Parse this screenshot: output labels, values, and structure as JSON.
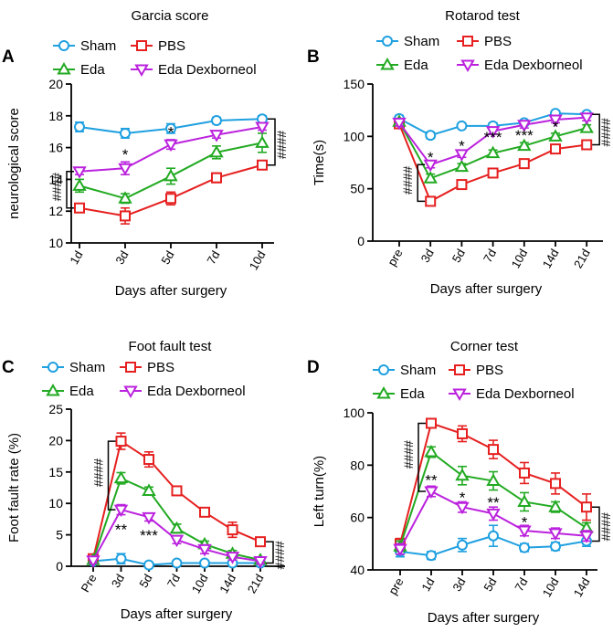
{
  "colors": {
    "sham": "#1fa0e0",
    "pbs": "#e62020",
    "eda": "#22aa22",
    "dex": "#bb22dd"
  },
  "chart_data": [
    {
      "type": "line",
      "letter": "A",
      "title": "Garcia score",
      "xlabel": "Days after surgery",
      "ylabel": "neurological score",
      "categories": [
        "1d",
        "3d",
        "5d",
        "7d",
        "10d"
      ],
      "ylim": [
        10,
        20
      ],
      "yticks": [
        10,
        12,
        14,
        16,
        18,
        20
      ],
      "series": [
        {
          "key": "sham",
          "name": "Sham",
          "marker": "circle",
          "values": [
            17.3,
            16.9,
            17.2,
            17.7,
            17.8
          ],
          "err": [
            0.3,
            0.3,
            0.3,
            0.2,
            0.2
          ]
        },
        {
          "key": "pbs",
          "name": "PBS",
          "marker": "square",
          "values": [
            12.2,
            11.7,
            12.8,
            14.1,
            14.9
          ],
          "err": [
            0.2,
            0.5,
            0.4,
            0.3,
            0.2
          ]
        },
        {
          "key": "eda",
          "name": "Eda",
          "marker": "triangle",
          "values": [
            13.6,
            12.8,
            14.2,
            15.7,
            16.3
          ],
          "err": [
            0.4,
            0.3,
            0.5,
            0.4,
            0.6
          ]
        },
        {
          "key": "dex",
          "name": "Eda Dexborneol",
          "marker": "triangle-down",
          "values": [
            14.5,
            14.7,
            16.2,
            16.8,
            17.3
          ],
          "err": [
            0.2,
            0.4,
            0.3,
            0.2,
            0.2
          ]
        }
      ],
      "star_marks": [
        {
          "cat": 1,
          "y": 15.7,
          "text": "*"
        },
        {
          "cat": 2,
          "y": 17.1,
          "text": "*"
        }
      ],
      "brackets": [
        {
          "side": "left",
          "cat": 0,
          "y1": 12.2,
          "y2": 14.5,
          "text": "####"
        },
        {
          "side": "right",
          "cat": 4,
          "y1": 14.9,
          "y2": 17.8,
          "text": "####"
        }
      ],
      "legend_rows": [
        [
          "sham",
          "pbs"
        ],
        [
          "eda",
          "dex"
        ]
      ]
    },
    {
      "type": "line",
      "letter": "B",
      "title": "Rotarod test",
      "xlabel": "Days after surgery",
      "ylabel": "Time(s)",
      "categories": [
        "pre",
        "3d",
        "5d",
        "7d",
        "10d",
        "14d",
        "21d"
      ],
      "ylim": [
        0,
        150
      ],
      "yticks": [
        0,
        50,
        100,
        150
      ],
      "series": [
        {
          "key": "sham",
          "name": "Sham",
          "marker": "circle",
          "values": [
            117,
            101,
            110,
            110,
            113,
            122,
            121
          ],
          "err": [
            3,
            3,
            2,
            3,
            2,
            2,
            2
          ]
        },
        {
          "key": "pbs",
          "name": "PBS",
          "marker": "square",
          "values": [
            112,
            38,
            54,
            65,
            74,
            88,
            92
          ],
          "err": [
            3,
            4,
            4,
            3,
            3,
            3,
            3
          ]
        },
        {
          "key": "eda",
          "name": "Eda",
          "marker": "triangle",
          "values": [
            114,
            60,
            71,
            84,
            91,
            100,
            108
          ],
          "err": [
            3,
            4,
            3,
            3,
            3,
            3,
            3
          ]
        },
        {
          "key": "dex",
          "name": "Eda Dexborneol",
          "marker": "triangle-down",
          "values": [
            113,
            73,
            83,
            105,
            111,
            116,
            118
          ],
          "err": [
            3,
            3,
            3,
            3,
            3,
            3,
            3
          ]
        }
      ],
      "star_marks": [
        {
          "cat": 1,
          "y": 82,
          "text": "*"
        },
        {
          "cat": 2,
          "y": 93,
          "text": "*"
        },
        {
          "cat": 3,
          "y": 101,
          "text": "***"
        },
        {
          "cat": 4,
          "y": 103,
          "text": "***"
        },
        {
          "cat": 5,
          "y": 111,
          "text": "*"
        }
      ],
      "brackets": [
        {
          "side": "left",
          "cat": 1,
          "y1": 38,
          "y2": 73,
          "text": "####"
        },
        {
          "side": "right",
          "cat": 6,
          "y1": 92,
          "y2": 121,
          "text": "####"
        }
      ],
      "legend_rows": [
        [
          "sham",
          "pbs"
        ],
        [
          "eda",
          "dex"
        ]
      ]
    },
    {
      "type": "line",
      "letter": "C",
      "title": "Foot fault test",
      "xlabel": "Days after surgery",
      "ylabel": "Foot fault rate (%)",
      "categories": [
        "Pre",
        "3d",
        "5d",
        "7d",
        "10d",
        "14d",
        "21d"
      ],
      "ylim": [
        0,
        25
      ],
      "yticks": [
        0,
        5,
        10,
        15,
        20,
        25
      ],
      "series": [
        {
          "key": "sham",
          "name": "Sham",
          "marker": "circle",
          "values": [
            0.8,
            1.2,
            0.2,
            0.5,
            0.5,
            0.5,
            0.5
          ],
          "err": [
            0.5,
            0.8,
            0.2,
            0.3,
            0.3,
            0.3,
            0.3
          ]
        },
        {
          "key": "pbs",
          "name": "PBS",
          "marker": "square",
          "values": [
            1.2,
            19.9,
            17.0,
            12.0,
            8.6,
            5.8,
            3.9
          ],
          "err": [
            0.6,
            1.3,
            1.2,
            0.6,
            0.7,
            1.2,
            0.5
          ]
        },
        {
          "key": "eda",
          "name": "Eda",
          "marker": "triangle",
          "values": [
            1.0,
            14.0,
            12.0,
            6.0,
            3.5,
            2.0,
            1.0
          ],
          "err": [
            0.5,
            0.9,
            0.6,
            0.7,
            0.5,
            0.5,
            0.3
          ]
        },
        {
          "key": "dex",
          "name": "Eda Dexborneol",
          "marker": "triangle-down",
          "values": [
            0.9,
            9.0,
            7.8,
            4.2,
            2.7,
            1.5,
            0.8
          ],
          "err": [
            0.4,
            0.8,
            0.6,
            0.6,
            0.7,
            0.5,
            0.4
          ]
        }
      ],
      "star_marks": [
        {
          "cat": 1,
          "y": 6.2,
          "text": "**"
        },
        {
          "cat": 2,
          "y": 5.2,
          "text": "***"
        }
      ],
      "brackets": [
        {
          "side": "left",
          "cat": 1,
          "y1": 9.0,
          "y2": 19.9,
          "text": "####"
        },
        {
          "side": "right",
          "cat": 6,
          "y1": 0.5,
          "y2": 3.9,
          "text": "####"
        }
      ],
      "legend_rows": [
        [
          "sham",
          "pbs"
        ],
        [
          "eda",
          "dex"
        ]
      ]
    },
    {
      "type": "line",
      "letter": "D",
      "title": "Corner test",
      "xlabel": "Days after surgery",
      "ylabel": "Left turn(%)",
      "categories": [
        "pre",
        "1d",
        "3d",
        "5d",
        "7d",
        "10d",
        "14d"
      ],
      "ylim": [
        40,
        100
      ],
      "yticks": [
        40,
        60,
        80,
        100
      ],
      "series": [
        {
          "key": "sham",
          "name": "Sham",
          "marker": "circle",
          "values": [
            47,
            45.5,
            49.5,
            53,
            48.5,
            49,
            51
          ],
          "err": [
            2,
            1.5,
            2.5,
            4,
            1.5,
            1.5,
            2
          ]
        },
        {
          "key": "pbs",
          "name": "PBS",
          "marker": "square",
          "values": [
            50,
            96,
            92,
            86,
            77,
            73,
            64
          ],
          "err": [
            2,
            1.5,
            3,
            3.5,
            4,
            4,
            5
          ]
        },
        {
          "key": "eda",
          "name": "Eda",
          "marker": "triangle",
          "values": [
            49,
            85,
            76,
            74,
            66,
            64,
            56
          ],
          "err": [
            2,
            2,
            3.5,
            3.5,
            3.5,
            2,
            2
          ]
        },
        {
          "key": "dex",
          "name": "Eda Dexborneol",
          "marker": "triangle-down",
          "values": [
            48,
            70,
            64,
            61.5,
            55,
            54,
            53
          ],
          "err": [
            2,
            2,
            2,
            2.5,
            2,
            2,
            2
          ]
        }
      ],
      "star_marks": [
        {
          "cat": 1,
          "y": 75,
          "text": "**"
        },
        {
          "cat": 2,
          "y": 68.5,
          "text": "*"
        },
        {
          "cat": 3,
          "y": 66.5,
          "text": "**"
        },
        {
          "cat": 4,
          "y": 59,
          "text": "*"
        }
      ],
      "brackets": [
        {
          "side": "left",
          "cat": 1,
          "y1": 70,
          "y2": 96,
          "text": "####"
        },
        {
          "side": "right",
          "cat": 6,
          "y1": 51,
          "y2": 64,
          "text": "####"
        }
      ],
      "legend_rows": [
        [
          "sham",
          "pbs"
        ],
        [
          "eda",
          "dex"
        ]
      ]
    }
  ]
}
